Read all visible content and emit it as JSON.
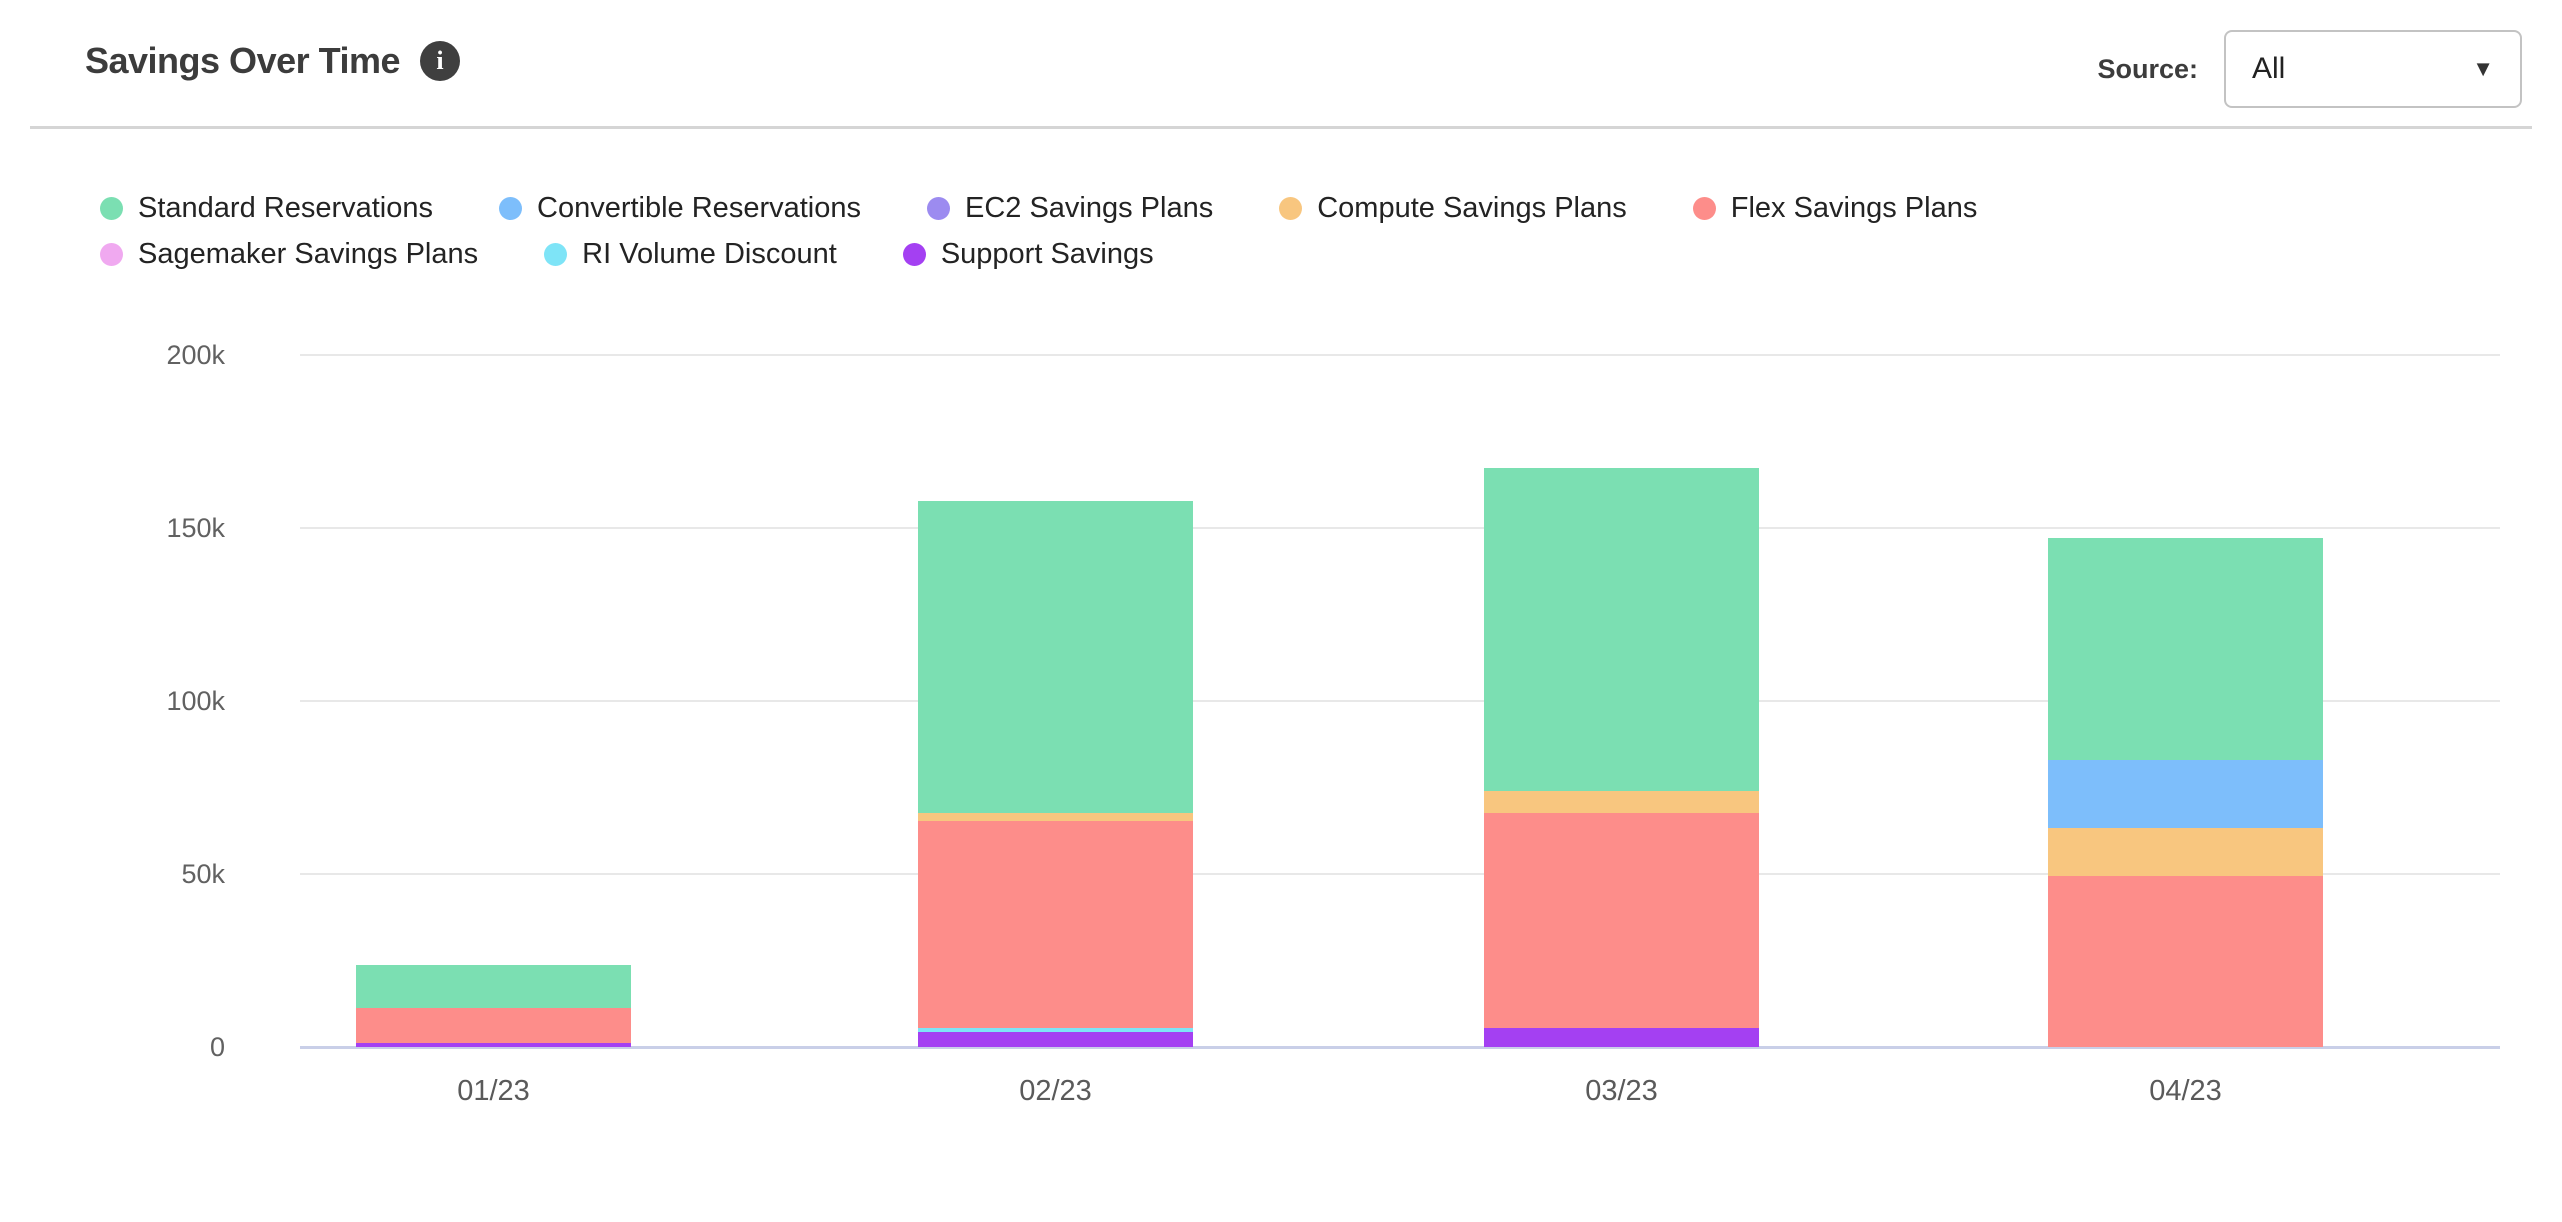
{
  "header": {
    "title": "Savings Over Time",
    "source_label": "Source:",
    "source_value": "All"
  },
  "icons": {
    "info": "i",
    "chevron_down": "▼"
  },
  "chart_data": {
    "type": "bar",
    "stacked": true,
    "title": "Savings Over Time",
    "categories": [
      "01/23",
      "02/23",
      "03/23",
      "04/23"
    ],
    "unit": "thousands",
    "ylim": [
      0,
      200
    ],
    "yticks": [
      "200k",
      "150k",
      "100k",
      "50k",
      "0"
    ],
    "ytick_values": [
      200,
      150,
      100,
      50,
      0
    ],
    "grid": true,
    "legend_position": "top",
    "legend_rows": [
      5,
      3
    ],
    "series": [
      {
        "name": "Standard Reservations",
        "color": "#7BDFB2",
        "values": [
          12.4,
          90.3,
          93.4,
          64.3
        ]
      },
      {
        "name": "Convertible Reservations",
        "color": "#7DBEFB",
        "values": [
          0,
          0,
          0,
          19.7
        ]
      },
      {
        "name": "EC2 Savings Plans",
        "color": "#9C8BF0",
        "values": [
          0,
          0,
          0,
          0
        ]
      },
      {
        "name": "Compute Savings Plans",
        "color": "#F8C67F",
        "values": [
          0,
          2.3,
          6.4,
          13.7
        ]
      },
      {
        "name": "Flex Savings Plans",
        "color": "#FD8D8A",
        "values": [
          10.1,
          59.9,
          62.2,
          49.5
        ]
      },
      {
        "name": "Sagemaker Savings Plans",
        "color": "#F0A9F0",
        "values": [
          0,
          0,
          0,
          0
        ]
      },
      {
        "name": "RI Volume Discount",
        "color": "#7EE4F7",
        "values": [
          0,
          1.2,
          0,
          0
        ]
      },
      {
        "name": "Support Savings",
        "color": "#A440F2",
        "values": [
          1.1,
          4.2,
          5.4,
          0
        ]
      }
    ],
    "stack_order_bottom_to_top": [
      "Support Savings",
      "RI Volume Discount",
      "Sagemaker Savings Plans",
      "Flex Savings Plans",
      "Compute Savings Plans",
      "EC2 Savings Plans",
      "Convertible Reservations",
      "Standard Reservations"
    ],
    "totals": [
      23.6,
      157.9,
      167.4,
      147.2
    ]
  }
}
